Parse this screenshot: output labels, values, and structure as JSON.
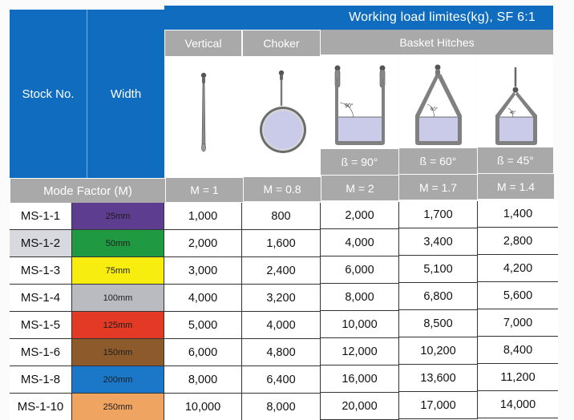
{
  "header": {
    "title": "Working load limites(kg), SF 6:1",
    "stock_no": "Stock No.",
    "width": "Width",
    "columns": [
      {
        "label": "Vertical",
        "icon": "vertical-sling-icon"
      },
      {
        "label": "Choker",
        "icon": "choker-sling-icon"
      },
      {
        "label": "Basket Hitches",
        "icon": "basket-hitch-group"
      }
    ],
    "basket_angles": [
      {
        "label": "ß = 90°",
        "diagram_angle": "90°",
        "icon": "basket-hitch-90-icon"
      },
      {
        "label": "ß = 60°",
        "diagram_angle": "60°",
        "icon": "basket-hitch-60-icon"
      },
      {
        "label": "ß = 45°",
        "diagram_angle": "45°",
        "icon": "basket-hitch-45-icon"
      }
    ]
  },
  "mode_factor": {
    "label": "Mode Factor (M)",
    "values": [
      "M = 1",
      "M = 0.8",
      "M = 2",
      "M = 1.7",
      "M = 1.4"
    ]
  },
  "colors": {
    "header_blue": "#0f6cbf",
    "header_gray": "#a9a9a9",
    "load_fill": "#c9cbe8"
  },
  "rows": [
    {
      "stock": "MS-1-1",
      "width": "25mm",
      "color": "#5c3d8f",
      "values": [
        "1,000",
        "800",
        "2,000",
        "1,700",
        "1,400"
      ]
    },
    {
      "stock": "MS-1-2",
      "width": "50mm",
      "color": "#1f9a43",
      "values": [
        "2,000",
        "1,600",
        "4,000",
        "3,400",
        "2,800"
      ]
    },
    {
      "stock": "MS-1-3",
      "width": "75mm",
      "color": "#f7ee10",
      "values": [
        "3,000",
        "2,400",
        "6,000",
        "5,100",
        "4,200"
      ]
    },
    {
      "stock": "MS-1-4",
      "width": "100mm",
      "color": "#b9bbc0",
      "values": [
        "4,000",
        "3,200",
        "8,000",
        "6,800",
        "5,600"
      ]
    },
    {
      "stock": "MS-1-5",
      "width": "125mm",
      "color": "#e23a25",
      "values": [
        "5,000",
        "4,000",
        "10,000",
        "8,500",
        "7,000"
      ]
    },
    {
      "stock": "MS-1-6",
      "width": "150mm",
      "color": "#8d5a2b",
      "values": [
        "6,000",
        "4,800",
        "12,000",
        "10,200",
        "8,400"
      ]
    },
    {
      "stock": "MS-1-8",
      "width": "200mm",
      "color": "#1b78c9",
      "values": [
        "8,000",
        "6,400",
        "16,000",
        "13,600",
        "11,200"
      ]
    },
    {
      "stock": "MS-1-10",
      "width": "250mm",
      "color": "#efa462",
      "values": [
        "10,000",
        "8,000",
        "20,000",
        "17,000",
        "14,000"
      ]
    }
  ]
}
